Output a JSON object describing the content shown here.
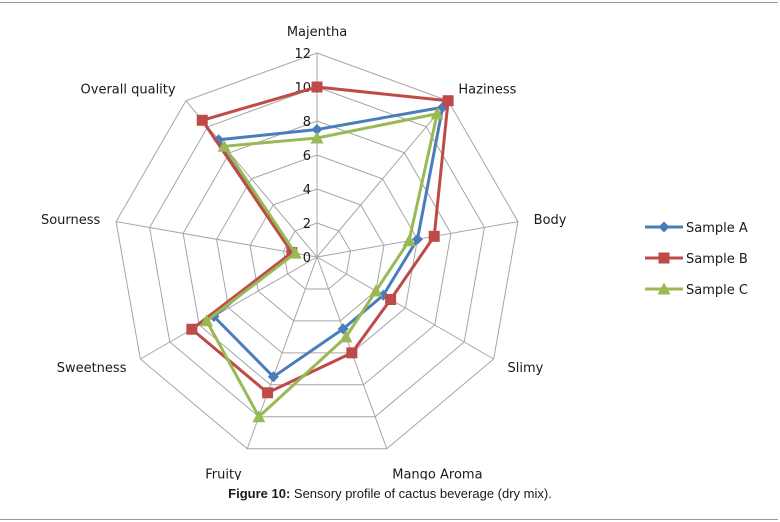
{
  "chart_data": {
    "type": "radar",
    "axes": [
      "Majentha",
      "Haziness",
      "Body",
      "Slimy",
      "Mango Aroma",
      "Fruity",
      "Sweetness",
      "Sourness",
      "Overall quality"
    ],
    "ticks": [
      "0",
      "2",
      "4",
      "6",
      "8",
      "10",
      "12"
    ],
    "range": [
      0,
      12
    ],
    "grid": true,
    "legend": "right",
    "series": [
      {
        "name": "Sample A",
        "values": [
          7.5,
          11.5,
          6.0,
          4.5,
          4.5,
          7.5,
          7.0,
          1.5,
          9.0
        ],
        "color": "#4a7ebb",
        "marker": "diamond"
      },
      {
        "name": "Sample B",
        "values": [
          10.0,
          12.0,
          7.0,
          5.0,
          6.0,
          8.5,
          8.5,
          1.5,
          10.5
        ],
        "color": "#be4b48",
        "marker": "square"
      },
      {
        "name": "Sample C",
        "values": [
          7.0,
          11.0,
          5.5,
          4.0,
          5.0,
          10.0,
          7.5,
          1.3,
          8.5
        ],
        "color": "#98b954",
        "marker": "triangle"
      }
    ]
  },
  "caption": {
    "label": "Figure 10:",
    "text": " Sensory profile of cactus beverage (dry mix)."
  }
}
